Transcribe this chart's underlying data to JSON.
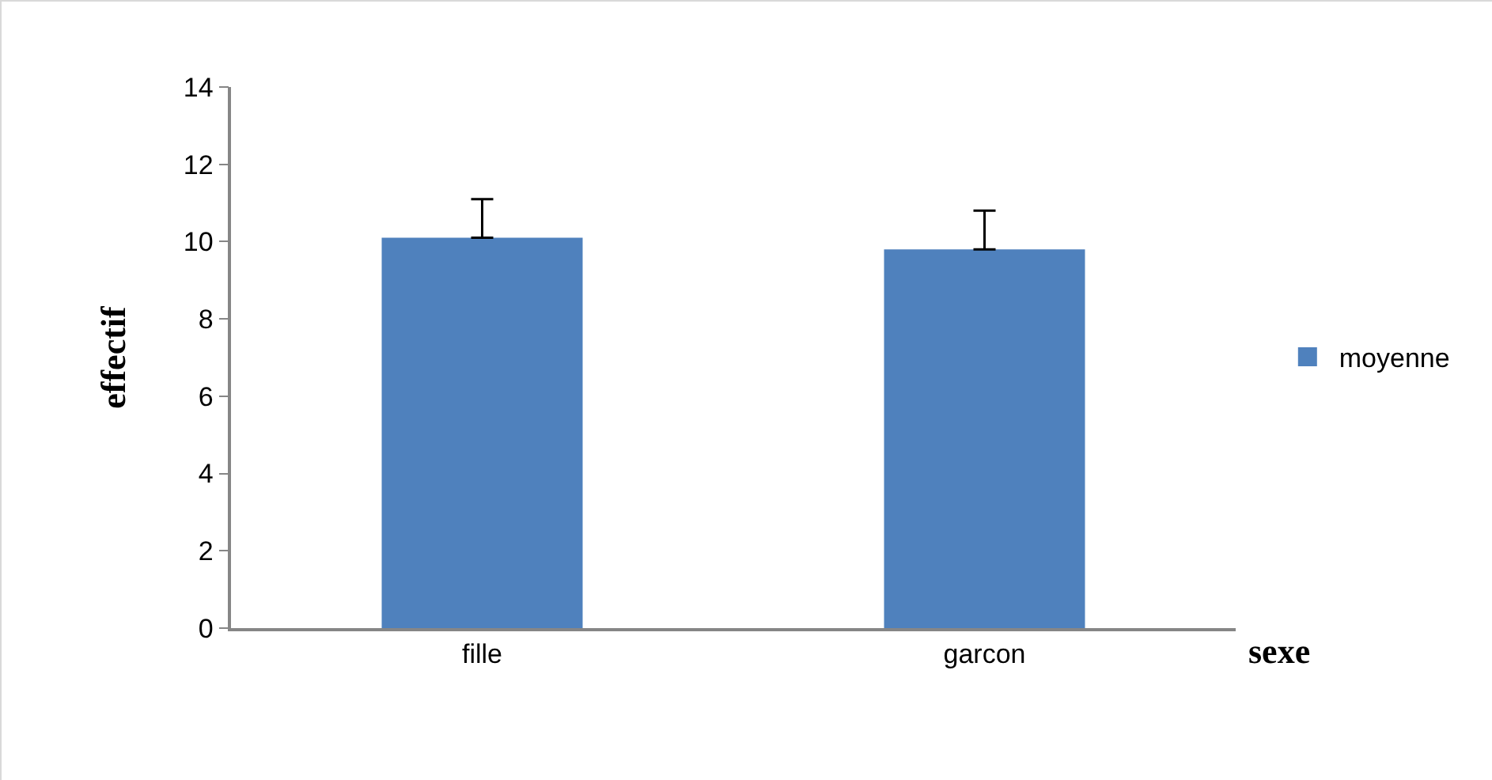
{
  "chart_data": {
    "type": "bar",
    "xlabel": "sexe",
    "ylabel": "effectif",
    "categories": [
      "fille",
      "garcon"
    ],
    "series": [
      {
        "name": "moyenne",
        "color": "#4f81bd",
        "values": [
          10.1,
          9.8
        ],
        "errors": [
          [
            10.1,
            11.1
          ],
          [
            9.8,
            10.8
          ]
        ]
      }
    ],
    "ylim": [
      0,
      14
    ],
    "yticks": [
      0,
      2,
      4,
      6,
      8,
      10,
      12,
      14
    ],
    "grid": false,
    "legend": "right"
  }
}
